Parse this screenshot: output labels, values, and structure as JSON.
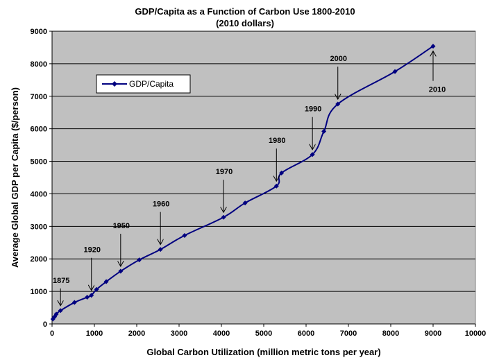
{
  "chart_data": {
    "type": "line",
    "title": "GDP/Capita as a Function of Carbon Use 1800-2010",
    "subtitle": "(2010 dollars)",
    "xlabel": "Global Carbon Utilization (million metric tons per year)",
    "ylabel": "Average Global GDP per Capita ($/person)",
    "xlim": [
      0,
      10000
    ],
    "ylim": [
      0,
      9000
    ],
    "xticks": [
      0,
      1000,
      2000,
      3000,
      4000,
      5000,
      6000,
      7000,
      8000,
      9000,
      10000
    ],
    "yticks": [
      0,
      1000,
      2000,
      3000,
      4000,
      5000,
      6000,
      7000,
      8000,
      9000
    ],
    "grid": "horizontal",
    "legend_position": "upper-left",
    "colors": {
      "plot_background": "#c0c0c0",
      "series": "#000080",
      "gridline": "#000000"
    },
    "series": [
      {
        "name": "GDP/Capita",
        "marker": "diamond",
        "x": [
          20,
          60,
          100,
          200,
          530,
          830,
          930,
          1050,
          1280,
          1620,
          2060,
          2560,
          3130,
          4050,
          4560,
          5300,
          5420,
          6150,
          6420,
          6750,
          8100,
          9000
        ],
        "y": [
          150,
          220,
          300,
          410,
          660,
          820,
          880,
          1060,
          1300,
          1620,
          1970,
          2290,
          2720,
          3280,
          3720,
          4240,
          4640,
          5210,
          5920,
          6760,
          7760,
          8540
        ]
      }
    ],
    "annotations": [
      {
        "text": "1875",
        "x": 200,
        "y": 410
      },
      {
        "text": "1920",
        "x": 930,
        "y": 880
      },
      {
        "text": "1950",
        "x": 1620,
        "y": 1620
      },
      {
        "text": "1960",
        "x": 2560,
        "y": 2290
      },
      {
        "text": "1970",
        "x": 4050,
        "y": 3280
      },
      {
        "text": "1980",
        "x": 5300,
        "y": 4240
      },
      {
        "text": "1990",
        "x": 6150,
        "y": 5210
      },
      {
        "text": "2000",
        "x": 6750,
        "y": 6760
      },
      {
        "text": "2010",
        "x": 9000,
        "y": 8540
      }
    ]
  }
}
